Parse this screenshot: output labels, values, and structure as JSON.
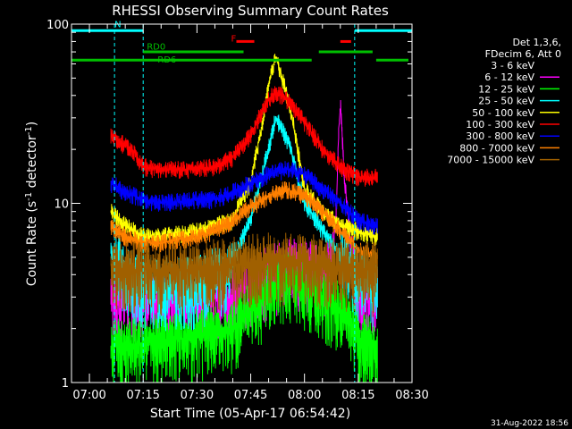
{
  "chart_data": {
    "type": "line",
    "title": "RHESSI Observing Summary Count Rates",
    "xlabel": "Start Time (05-Apr-17 06:54:42)",
    "ylabel_main": "Count Rate (s",
    "ylabel_sup": "-1",
    "ylabel_rest": " detector",
    "ylabel_sup2": "-1",
    "ylabel_close": ")",
    "y_scale": "log",
    "ylim": [
      1,
      100
    ],
    "y_ticks": [
      {
        "v": 1,
        "label": "1"
      },
      {
        "v": 10,
        "label": "10"
      },
      {
        "v": 100,
        "label": "100"
      }
    ],
    "xlim": [
      55,
      150
    ],
    "x_ticks": [
      {
        "v": 60,
        "label": "07:00"
      },
      {
        "v": 75,
        "label": "07:15"
      },
      {
        "v": 90,
        "label": "07:30"
      },
      {
        "v": 105,
        "label": "07:45"
      },
      {
        "v": 120,
        "label": "08:00"
      },
      {
        "v": 135,
        "label": "08:15"
      },
      {
        "v": 150,
        "label": "08:30"
      }
    ],
    "legend_header": [
      "Det 1,3,6,",
      "FDecim 6, Att 0"
    ],
    "series": [
      {
        "name": "3 - 6 keV",
        "color": "#000000",
        "x": [
          66,
          70,
          80,
          90,
          100,
          105,
          110,
          112,
          115,
          118,
          120,
          125,
          130,
          132,
          135,
          140
        ],
        "y": [
          15.5,
          15.5,
          15,
          15,
          15,
          15.5,
          16,
          16.5,
          17,
          16,
          15,
          14.5,
          13.5,
          12,
          14,
          14
        ]
      },
      {
        "name": "6 - 12 keV",
        "color": "#ff00ff",
        "x": [
          66,
          70,
          80,
          90,
          100,
          105,
          110,
          115,
          120,
          125,
          128,
          129,
          130,
          131,
          133,
          135,
          140
        ],
        "y": [
          3.0,
          3.0,
          3.0,
          3.0,
          3.0,
          3.5,
          4.0,
          4.5,
          4.5,
          4.0,
          5.0,
          10,
          36,
          14,
          5.0,
          3.0,
          3.0
        ]
      },
      {
        "name": "12 - 25 keV",
        "color": "#00ff00",
        "x": [
          66,
          70,
          80,
          90,
          100,
          105,
          110,
          115,
          120,
          125,
          130,
          135,
          140
        ],
        "y": [
          1.6,
          1.6,
          1.7,
          1.8,
          2.0,
          2.5,
          3.2,
          3.8,
          3.5,
          3.0,
          2.5,
          1.8,
          1.6
        ]
      },
      {
        "name": "25 - 50 keV",
        "color": "#00ffff",
        "x": [
          66,
          70,
          75,
          80,
          90,
          100,
          105,
          108,
          110,
          112,
          115,
          118,
          120,
          125,
          130,
          135,
          140
        ],
        "y": [
          5.5,
          4.0,
          3.5,
          3.5,
          3.5,
          4.5,
          8.0,
          14,
          20,
          30,
          23,
          14,
          10,
          7.0,
          5.0,
          4.0,
          3.5
        ]
      },
      {
        "name": "50 - 100 keV",
        "color": "#ffff00",
        "x": [
          66,
          70,
          75,
          80,
          90,
          100,
          105,
          108,
          110,
          112,
          115,
          118,
          120,
          125,
          130,
          135,
          140
        ],
        "y": [
          9.0,
          7.5,
          6.5,
          6.5,
          7.0,
          8.0,
          13,
          25,
          45,
          65,
          40,
          20,
          12,
          9.0,
          7.5,
          7.0,
          6.5
        ]
      },
      {
        "name": "100 - 300 keV",
        "color": "#ff0000",
        "x": [
          66,
          70,
          72,
          75,
          80,
          90,
          95,
          100,
          105,
          108,
          110,
          112,
          115,
          118,
          120,
          125,
          130,
          132,
          135,
          140
        ],
        "y": [
          24,
          21,
          20,
          16,
          15.5,
          15.5,
          16,
          18,
          24,
          32,
          38,
          42,
          38,
          32,
          28,
          20,
          16,
          15,
          14,
          14
        ]
      },
      {
        "name": "300 - 800 keV",
        "color": "#0000ff",
        "x": [
          66,
          70,
          75,
          80,
          90,
          95,
          100,
          105,
          110,
          115,
          120,
          125,
          130,
          135,
          140
        ],
        "y": [
          13,
          11.5,
          10.5,
          10,
          10.5,
          10.5,
          11.5,
          13,
          14.5,
          15.5,
          14.5,
          12,
          10,
          8.0,
          7.5
        ]
      },
      {
        "name": "800 - 7000 keV",
        "color": "#ff8000",
        "x": [
          66,
          70,
          75,
          80,
          90,
          95,
          100,
          105,
          110,
          115,
          120,
          125,
          130,
          135,
          140
        ],
        "y": [
          7.5,
          6.5,
          6.0,
          6.0,
          6.5,
          7.0,
          8.0,
          9.5,
          11,
          12,
          11,
          9.0,
          7.0,
          5.5,
          5.0
        ]
      },
      {
        "name": "7000 - 15000 keV",
        "color": "#a06000",
        "x": [
          66,
          70,
          80,
          90,
          100,
          110,
          120,
          130,
          140
        ],
        "y": [
          4.5,
          4.3,
          4.2,
          4.3,
          4.5,
          4.8,
          4.7,
          4.4,
          4.2
        ]
      }
    ],
    "annotations": [
      {
        "label": "N",
        "color": "#00ffff",
        "x1": 55,
        "x2": 75,
        "y": 92,
        "text_x": 67,
        "text_y": 96,
        "dashed_at": [
          67,
          75
        ]
      },
      {
        "label": "",
        "color": "#00ffff",
        "x1": 134,
        "x2": 150,
        "y": 92,
        "text_x": 0,
        "text_y": 0,
        "dashed_at": [
          134,
          150
        ]
      },
      {
        "label": "F",
        "color": "#ff0000",
        "x1": 101,
        "x2": 106,
        "y": 80,
        "text_x": 99.5,
        "text_y": 80
      },
      {
        "label": "",
        "color": "#ff0000",
        "x1": 130,
        "x2": 133,
        "y": 80,
        "text_x": 0,
        "text_y": 0
      },
      {
        "label": "RD0",
        "color": "#00c000",
        "x1": 75,
        "x2": 103,
        "y": 70,
        "text_x": 76,
        "text_y": 72
      },
      {
        "label": "",
        "color": "#00c000",
        "x1": 124,
        "x2": 139,
        "y": 70,
        "text_x": 0,
        "text_y": 0
      },
      {
        "label": "RD6",
        "color": "#00c000",
        "x1": 55,
        "x2": 122,
        "y": 63,
        "text_x": 79,
        "text_y": 61
      },
      {
        "label": "",
        "color": "#00c000",
        "x1": 140,
        "x2": 149,
        "y": 63,
        "text_x": 0,
        "text_y": 0
      }
    ],
    "footer_date": "31-Aug-2022 18:56"
  }
}
